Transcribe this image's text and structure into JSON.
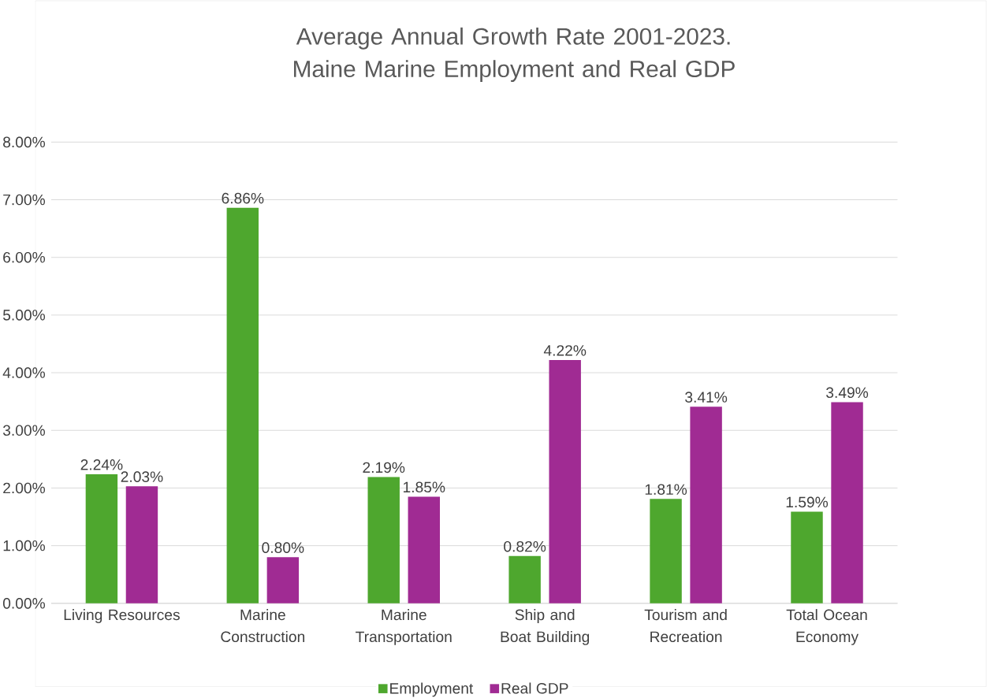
{
  "chart_data": {
    "type": "bar",
    "title": "Average Annual Growth Rate 2001-2023. Maine Marine Employment and Real GDP",
    "categories": [
      "Living Resources",
      "Marine Construction",
      "Marine Transportation",
      "Ship and Boat Building",
      "Tourism and Recreation",
      "Total Ocean Economy"
    ],
    "series": [
      {
        "name": "Employment",
        "color": "#4ea72e",
        "values": [
          2.24,
          6.86,
          2.19,
          0.82,
          1.81,
          1.59
        ],
        "value_labels": [
          "2.24%",
          "6.86%",
          "2.19%",
          "0.82%",
          "1.81%",
          "1.59%"
        ]
      },
      {
        "name": "Real GDP",
        "color": "#a02b93",
        "values": [
          2.03,
          0.8,
          1.85,
          4.22,
          3.41,
          3.49
        ],
        "value_labels": [
          "2.03%",
          "0.80%",
          "1.85%",
          "4.22%",
          "3.41%",
          "3.49%"
        ]
      }
    ],
    "ylim": [
      0,
      8
    ],
    "yticks": [
      {
        "value": 0,
        "label": "0.00%"
      },
      {
        "value": 1,
        "label": "1.00%"
      },
      {
        "value": 2,
        "label": "2.00%"
      },
      {
        "value": 3,
        "label": "3.00%"
      },
      {
        "value": 4,
        "label": "4.00%"
      },
      {
        "value": 5,
        "label": "5.00%"
      },
      {
        "value": 6,
        "label": "6.00%"
      },
      {
        "value": 7,
        "label": "7.00%"
      },
      {
        "value": 8,
        "label": "8.00%"
      }
    ],
    "grid": "y",
    "legend": "bottom"
  }
}
